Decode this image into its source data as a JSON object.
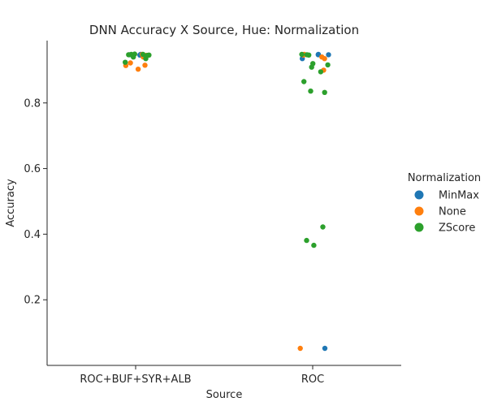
{
  "chart_data": {
    "type": "scatter",
    "subtype": "strip",
    "title": "DNN Accuracy X Source, Hue: Normalization",
    "xlabel": "Source",
    "ylabel": "Accuracy",
    "categories": [
      "ROC+BUF+SYR+ALB",
      "ROC"
    ],
    "ylim": [
      0.0,
      0.99
    ],
    "yticks": [
      0.2,
      0.4,
      0.6,
      0.8
    ],
    "ytick_labels": [
      "0.2",
      "0.4",
      "0.6",
      "0.8"
    ],
    "grid": false,
    "legend_position": "right",
    "legend_title": "Normalization",
    "series": [
      {
        "name": "MinMax",
        "color": "#1f77b4",
        "points": [
          {
            "category": "ROC+BUF+SYR+ALB",
            "y": 0.948
          },
          {
            "category": "ROC+BUF+SYR+ALB",
            "y": 0.947
          },
          {
            "category": "ROC+BUF+SYR+ALB",
            "y": 0.946
          },
          {
            "category": "ROC",
            "y": 0.947
          },
          {
            "category": "ROC",
            "y": 0.948
          },
          {
            "category": "ROC",
            "y": 0.947
          },
          {
            "category": "ROC",
            "y": 0.935
          },
          {
            "category": "ROC",
            "y": 0.052
          }
        ]
      },
      {
        "name": "None",
        "color": "#ff7f0e",
        "points": [
          {
            "category": "ROC+BUF+SYR+ALB",
            "y": 0.948
          },
          {
            "category": "ROC+BUF+SYR+ALB",
            "y": 0.945
          },
          {
            "category": "ROC+BUF+SYR+ALB",
            "y": 0.94
          },
          {
            "category": "ROC+BUF+SYR+ALB",
            "y": 0.922
          },
          {
            "category": "ROC+BUF+SYR+ALB",
            "y": 0.915
          },
          {
            "category": "ROC+BUF+SYR+ALB",
            "y": 0.914
          },
          {
            "category": "ROC+BUF+SYR+ALB",
            "y": 0.903
          },
          {
            "category": "ROC",
            "y": 0.948
          },
          {
            "category": "ROC",
            "y": 0.946
          },
          {
            "category": "ROC",
            "y": 0.94
          },
          {
            "category": "ROC",
            "y": 0.935
          },
          {
            "category": "ROC",
            "y": 0.9
          },
          {
            "category": "ROC",
            "y": 0.052
          }
        ]
      },
      {
        "name": "ZScore",
        "color": "#2ca02c",
        "points": [
          {
            "category": "ROC+BUF+SYR+ALB",
            "y": 0.949
          },
          {
            "category": "ROC+BUF+SYR+ALB",
            "y": 0.948
          },
          {
            "category": "ROC+BUF+SYR+ALB",
            "y": 0.948
          },
          {
            "category": "ROC+BUF+SYR+ALB",
            "y": 0.947
          },
          {
            "category": "ROC+BUF+SYR+ALB",
            "y": 0.947
          },
          {
            "category": "ROC+BUF+SYR+ALB",
            "y": 0.946
          },
          {
            "category": "ROC+BUF+SYR+ALB",
            "y": 0.945
          },
          {
            "category": "ROC+BUF+SYR+ALB",
            "y": 0.944
          },
          {
            "category": "ROC+BUF+SYR+ALB",
            "y": 0.94
          },
          {
            "category": "ROC+BUF+SYR+ALB",
            "y": 0.935
          },
          {
            "category": "ROC+BUF+SYR+ALB",
            "y": 0.924
          },
          {
            "category": "ROC",
            "y": 0.948
          },
          {
            "category": "ROC",
            "y": 0.947
          },
          {
            "category": "ROC",
            "y": 0.946
          },
          {
            "category": "ROC",
            "y": 0.92
          },
          {
            "category": "ROC",
            "y": 0.916
          },
          {
            "category": "ROC",
            "y": 0.909
          },
          {
            "category": "ROC",
            "y": 0.895
          },
          {
            "category": "ROC",
            "y": 0.865
          },
          {
            "category": "ROC",
            "y": 0.836
          },
          {
            "category": "ROC",
            "y": 0.832
          },
          {
            "category": "ROC",
            "y": 0.422
          },
          {
            "category": "ROC",
            "y": 0.381
          },
          {
            "category": "ROC",
            "y": 0.366
          }
        ]
      }
    ]
  }
}
